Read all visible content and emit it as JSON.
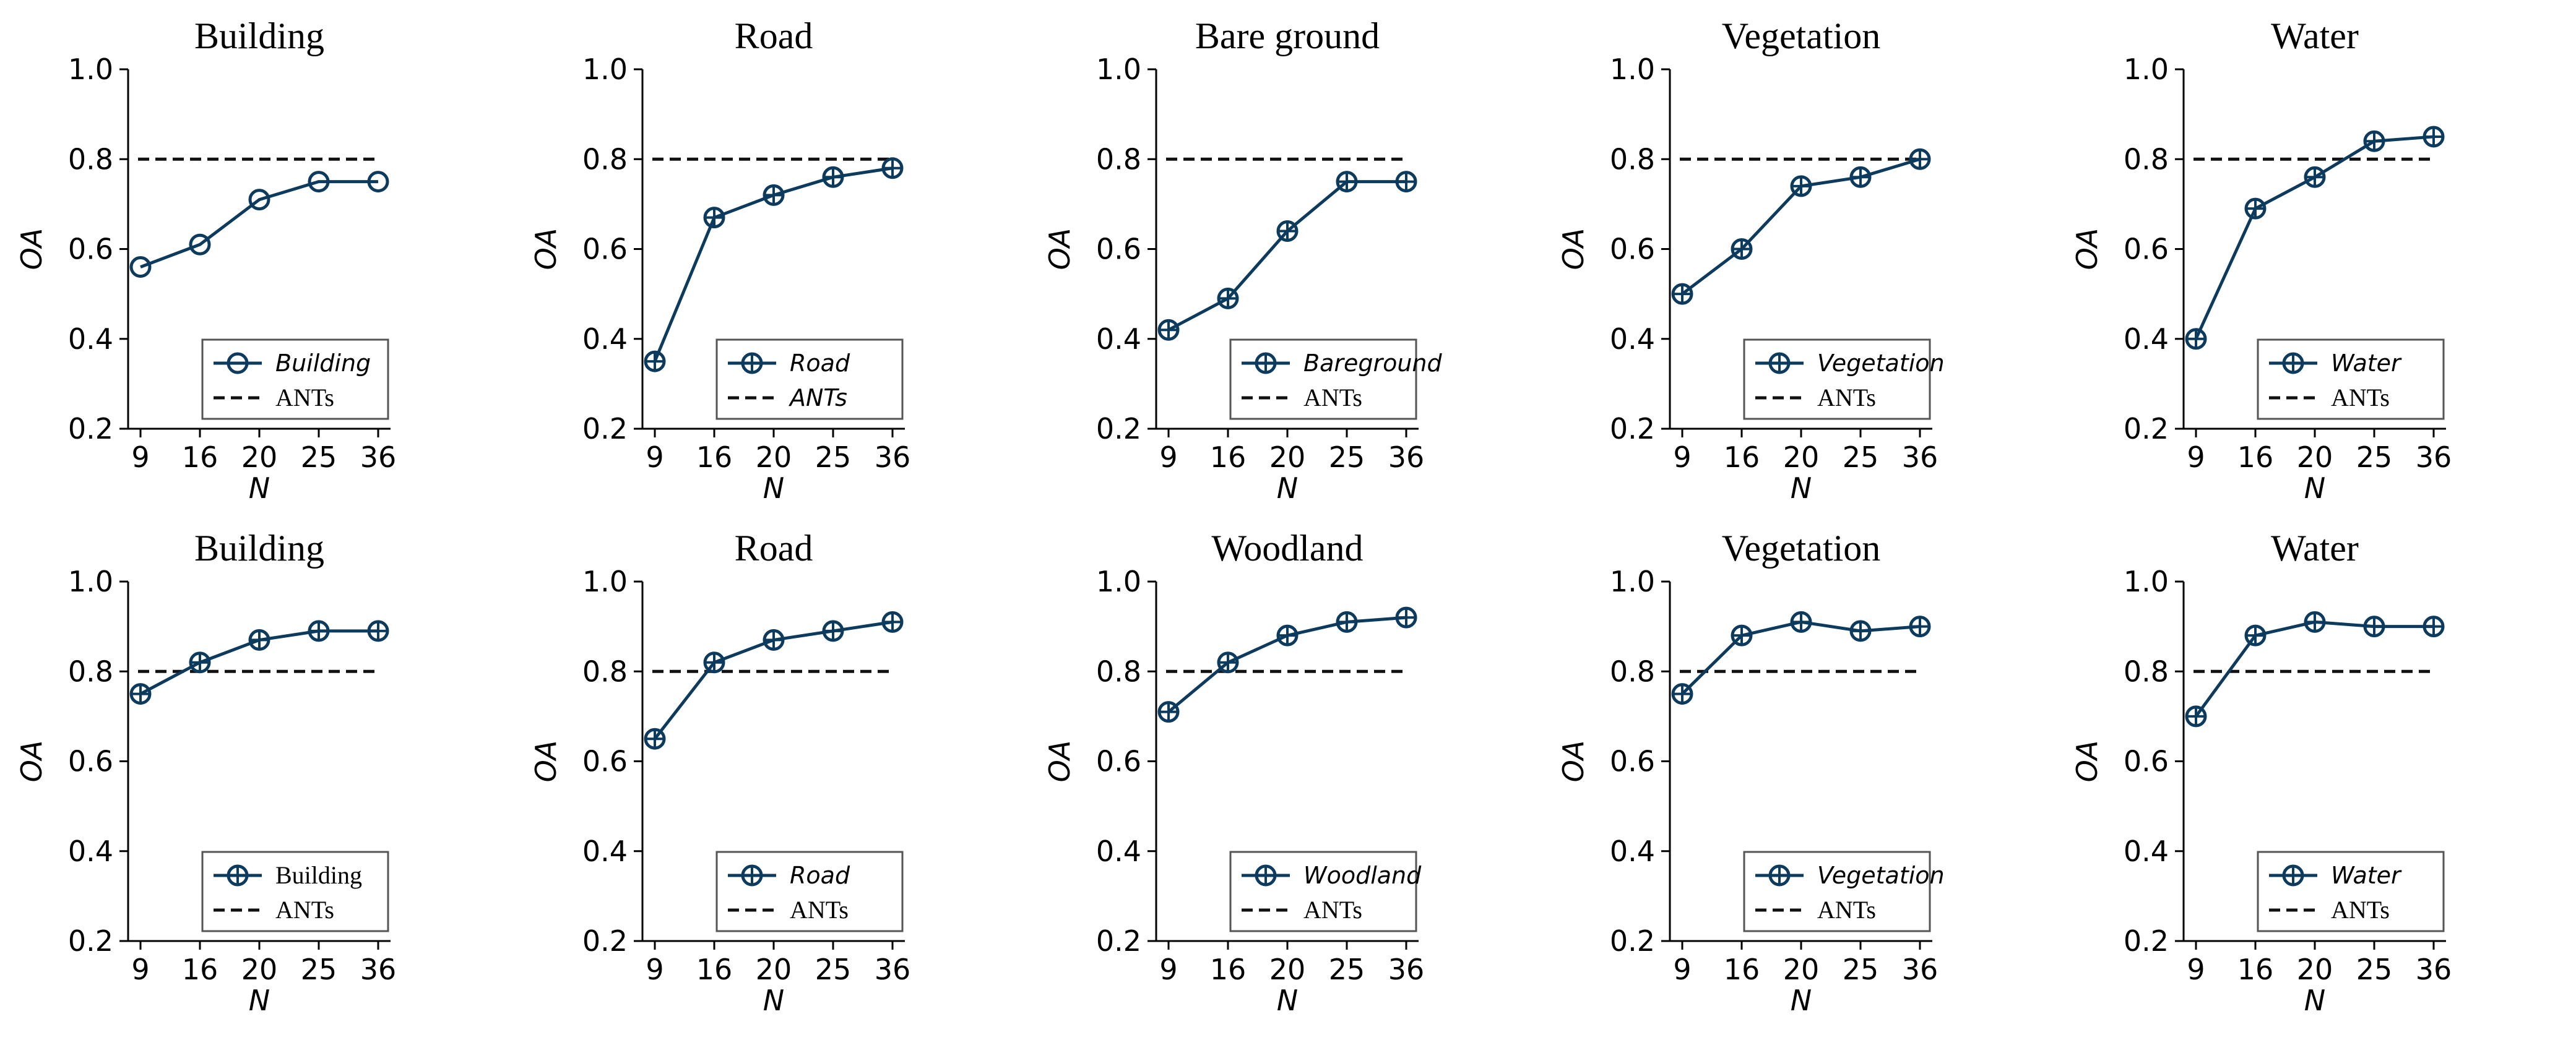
{
  "colors": {
    "series": "#0d3b5e",
    "baseline": "#111111"
  },
  "chart_data": [
    {
      "type": "line",
      "title": "Building",
      "xlabel": "N",
      "ylabel": "OA",
      "categories": [
        "9",
        "16",
        "20",
        "25",
        "36"
      ],
      "ylim": [
        0.2,
        1.0
      ],
      "yticks": [
        "0.2",
        "0.4",
        "0.6",
        "0.8",
        "1.0"
      ],
      "series": [
        {
          "name": "Building",
          "values": [
            0.56,
            0.61,
            0.71,
            0.75,
            0.75
          ]
        }
      ],
      "baseline": {
        "name": "ANTs",
        "value": 0.8
      },
      "legend": {
        "position": "lower-right",
        "series_style": "italic",
        "baseline_style": "serif",
        "marker": "circle"
      }
    },
    {
      "type": "line",
      "title": "Road",
      "xlabel": "N",
      "ylabel": "OA",
      "categories": [
        "9",
        "16",
        "20",
        "25",
        "36"
      ],
      "ylim": [
        0.2,
        1.0
      ],
      "yticks": [
        "0.2",
        "0.4",
        "0.6",
        "0.8",
        "1.0"
      ],
      "series": [
        {
          "name": "Road",
          "values": [
            0.35,
            0.67,
            0.72,
            0.76,
            0.78
          ]
        }
      ],
      "baseline": {
        "name": "ANTs",
        "value": 0.8
      },
      "legend": {
        "position": "lower-right",
        "series_style": "italic",
        "baseline_style": "italic",
        "marker": "crosshair"
      }
    },
    {
      "type": "line",
      "title": "Bare ground",
      "xlabel": "N",
      "ylabel": "OA",
      "categories": [
        "9",
        "16",
        "20",
        "25",
        "36"
      ],
      "ylim": [
        0.2,
        1.0
      ],
      "yticks": [
        "0.2",
        "0.4",
        "0.6",
        "0.8",
        "1.0"
      ],
      "series": [
        {
          "name": "Bareground",
          "values": [
            0.42,
            0.49,
            0.64,
            0.75,
            0.75
          ]
        }
      ],
      "baseline": {
        "name": "ANTs",
        "value": 0.8
      },
      "legend": {
        "position": "lower-right",
        "series_style": "italic",
        "baseline_style": "serif",
        "marker": "crosshair"
      }
    },
    {
      "type": "line",
      "title": "Vegetation",
      "xlabel": "N",
      "ylabel": "OA",
      "categories": [
        "9",
        "16",
        "20",
        "25",
        "36"
      ],
      "ylim": [
        0.2,
        1.0
      ],
      "yticks": [
        "0.2",
        "0.4",
        "0.6",
        "0.8",
        "1.0"
      ],
      "series": [
        {
          "name": "Vegetation",
          "values": [
            0.5,
            0.6,
            0.74,
            0.76,
            0.8
          ]
        }
      ],
      "baseline": {
        "name": "ANTs",
        "value": 0.8
      },
      "legend": {
        "position": "lower-right",
        "series_style": "italic",
        "baseline_style": "serif",
        "marker": "crosshair"
      }
    },
    {
      "type": "line",
      "title": "Water",
      "xlabel": "N",
      "ylabel": "OA",
      "categories": [
        "9",
        "16",
        "20",
        "25",
        "36"
      ],
      "ylim": [
        0.2,
        1.0
      ],
      "yticks": [
        "0.2",
        "0.4",
        "0.6",
        "0.8",
        "1.0"
      ],
      "series": [
        {
          "name": "Water",
          "values": [
            0.4,
            0.69,
            0.76,
            0.84,
            0.85
          ]
        }
      ],
      "baseline": {
        "name": "ANTs",
        "value": 0.8
      },
      "legend": {
        "position": "lower-right",
        "series_style": "italic",
        "baseline_style": "serif",
        "marker": "crosshair"
      }
    },
    {
      "type": "line",
      "title": "Building",
      "xlabel": "N",
      "ylabel": "OA",
      "categories": [
        "9",
        "16",
        "20",
        "25",
        "36"
      ],
      "ylim": [
        0.2,
        1.0
      ],
      "yticks": [
        "0.2",
        "0.4",
        "0.6",
        "0.8",
        "1.0"
      ],
      "series": [
        {
          "name": "Building",
          "values": [
            0.75,
            0.82,
            0.87,
            0.89,
            0.89
          ]
        }
      ],
      "baseline": {
        "name": "ANTs",
        "value": 0.8
      },
      "legend": {
        "position": "lower-right",
        "series_style": "serif",
        "baseline_style": "serif",
        "marker": "crosshair"
      }
    },
    {
      "type": "line",
      "title": "Road",
      "xlabel": "N",
      "ylabel": "OA",
      "categories": [
        "9",
        "16",
        "20",
        "25",
        "36"
      ],
      "ylim": [
        0.2,
        1.0
      ],
      "yticks": [
        "0.2",
        "0.4",
        "0.6",
        "0.8",
        "1.0"
      ],
      "series": [
        {
          "name": "Road",
          "values": [
            0.65,
            0.82,
            0.87,
            0.89,
            0.91
          ]
        }
      ],
      "baseline": {
        "name": "ANTs",
        "value": 0.8
      },
      "legend": {
        "position": "lower-right",
        "series_style": "italic",
        "baseline_style": "serif",
        "marker": "crosshair"
      }
    },
    {
      "type": "line",
      "title": "Woodland",
      "xlabel": "N",
      "ylabel": "OA",
      "categories": [
        "9",
        "16",
        "20",
        "25",
        "36"
      ],
      "ylim": [
        0.2,
        1.0
      ],
      "yticks": [
        "0.2",
        "0.4",
        "0.6",
        "0.8",
        "1.0"
      ],
      "series": [
        {
          "name": "Woodland",
          "values": [
            0.71,
            0.82,
            0.88,
            0.91,
            0.92
          ]
        }
      ],
      "baseline": {
        "name": "ANTs",
        "value": 0.8
      },
      "legend": {
        "position": "lower-right",
        "series_style": "italic",
        "baseline_style": "serif",
        "marker": "crosshair"
      }
    },
    {
      "type": "line",
      "title": "Vegetation",
      "xlabel": "N",
      "ylabel": "OA",
      "categories": [
        "9",
        "16",
        "20",
        "25",
        "36"
      ],
      "ylim": [
        0.2,
        1.0
      ],
      "yticks": [
        "0.2",
        "0.4",
        "0.6",
        "0.8",
        "1.0"
      ],
      "series": [
        {
          "name": "Vegetation",
          "values": [
            0.75,
            0.88,
            0.91,
            0.89,
            0.9
          ]
        }
      ],
      "baseline": {
        "name": "ANTs",
        "value": 0.8
      },
      "legend": {
        "position": "lower-right",
        "series_style": "italic",
        "baseline_style": "serif",
        "marker": "crosshair"
      }
    },
    {
      "type": "line",
      "title": "Water",
      "xlabel": "N",
      "ylabel": "OA",
      "categories": [
        "9",
        "16",
        "20",
        "25",
        "36"
      ],
      "ylim": [
        0.2,
        1.0
      ],
      "yticks": [
        "0.2",
        "0.4",
        "0.6",
        "0.8",
        "1.0"
      ],
      "series": [
        {
          "name": "Water",
          "values": [
            0.7,
            0.88,
            0.91,
            0.9,
            0.9
          ]
        }
      ],
      "baseline": {
        "name": "ANTs",
        "value": 0.8
      },
      "legend": {
        "position": "lower-right",
        "series_style": "italic",
        "baseline_style": "serif",
        "marker": "crosshair"
      }
    }
  ]
}
